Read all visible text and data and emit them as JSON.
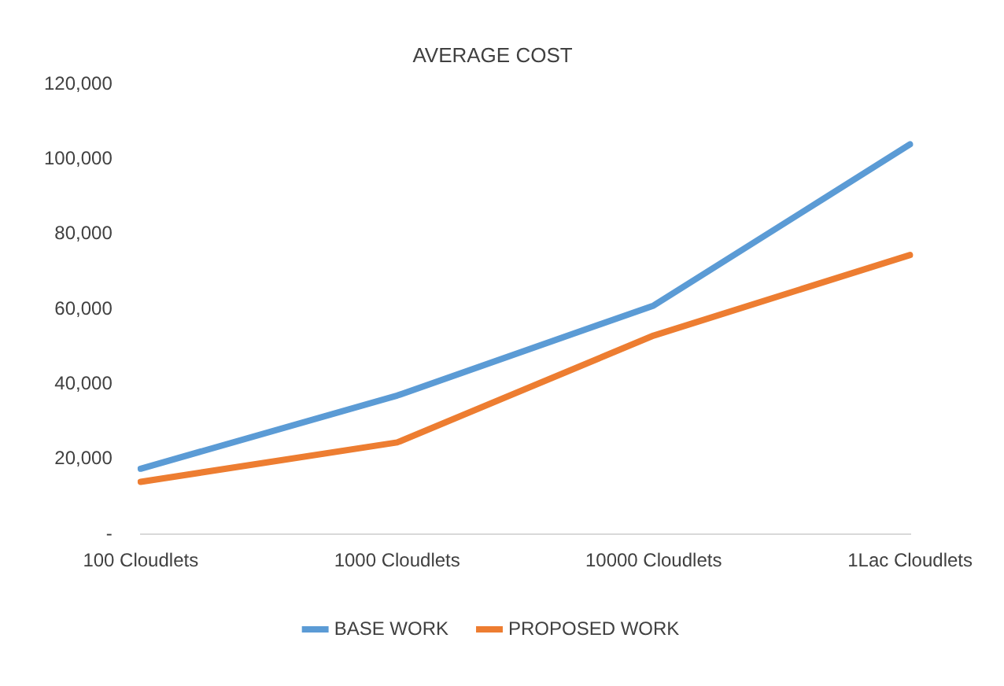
{
  "chart_data": {
    "type": "line",
    "title": "AVERAGE COST",
    "categories": [
      "100 Cloudlets",
      "1000 Cloudlets",
      "10000 Cloudlets",
      "1Lac Cloudlets"
    ],
    "series": [
      {
        "name": "BASE WORK",
        "color": "#5b9bd5",
        "values": [
          17500,
          37000,
          61000,
          104000
        ]
      },
      {
        "name": "PROPOSED WORK",
        "color": "#ed7d31",
        "values": [
          14000,
          24500,
          53000,
          74500
        ]
      }
    ],
    "ylim": [
      0,
      120000
    ],
    "yticks": [
      {
        "value": 0,
        "label": "-"
      },
      {
        "value": 20000,
        "label": "20,000"
      },
      {
        "value": 40000,
        "label": "40,000"
      },
      {
        "value": 60000,
        "label": "60,000"
      },
      {
        "value": 80000,
        "label": "80,000"
      },
      {
        "value": 100000,
        "label": "100,000"
      },
      {
        "value": 120000,
        "label": "120,000"
      }
    ],
    "grid": false,
    "legend": "bottom",
    "marker": "none",
    "line_style": "solid"
  }
}
